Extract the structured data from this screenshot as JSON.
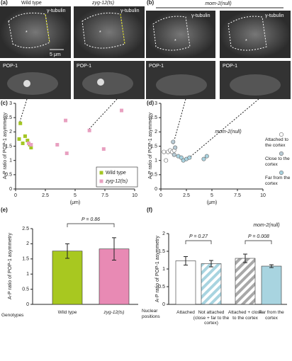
{
  "micrographs": {
    "a": {
      "label": "(a)",
      "columns": [
        "Wild type",
        "zyg-12(ts)"
      ],
      "stain_top": "γ-tubulin",
      "stain_bottom": "POP-1",
      "scale_bar": "5 μm",
      "marker": "*"
    },
    "b": {
      "label": "(b)",
      "title": "mom-2(null)",
      "stain_top": "γ-tubulin",
      "stain_bottom": "POP-1",
      "marker": "*"
    }
  },
  "chart_data": [
    {
      "type": "scatter",
      "label": "(c)",
      "y_label": "A-P ratio of POP-1 asymmetry",
      "x_label": "(μm)",
      "xlim": [
        0,
        10
      ],
      "xticks": [
        0,
        2.5,
        5,
        7.5,
        10
      ],
      "ylim": [
        0,
        3
      ],
      "yticks": [
        0,
        0.5,
        1,
        1.5,
        2,
        2.5,
        3
      ],
      "marker": "square",
      "legend": "lower right",
      "series": [
        {
          "name": "Wild type",
          "color": "#a4c623",
          "x": [
            0.4,
            0.3,
            0.8,
            1.0,
            1.2,
            1.3,
            0.6
          ],
          "values": [
            2.3,
            1.75,
            1.85,
            1.7,
            1.55,
            1.45,
            1.6
          ]
        },
        {
          "name": "zyg-12(ts)",
          "color": "#e8a0c0",
          "x": [
            1.1,
            4.2,
            6.2,
            8.9,
            3.5,
            7.4,
            4.3,
            1.3
          ],
          "values": [
            1.6,
            2.4,
            2.05,
            2.75,
            1.55,
            1.4,
            1.25,
            1.55
          ]
        }
      ]
    },
    {
      "type": "scatter",
      "label": "(d)",
      "y_label": "A-P ratio of POP-1 asymmetry",
      "x_label": "(μm)",
      "xlim": [
        0,
        10
      ],
      "xticks": [
        0,
        2.5,
        5,
        7.5,
        10
      ],
      "ylim": [
        0,
        3
      ],
      "yticks": [
        0,
        0.5,
        1,
        1.5,
        2,
        2.5,
        3
      ],
      "marker": "circle",
      "legend": "right",
      "annotations": [
        "mom-2(null)"
      ],
      "series": [
        {
          "name": "Attached to the cortex",
          "color": "#ffffff",
          "x": [
            0.3,
            0.5,
            0.7,
            0.9,
            1.1,
            1.3
          ],
          "values": [
            1.3,
            1.0,
            1.3,
            1.35,
            1.3,
            1.35
          ]
        },
        {
          "name": "Close to the cortex",
          "color": "#b9ccd6",
          "x": [
            1.2,
            1.4,
            1.3
          ],
          "values": [
            1.65,
            1.45,
            1.2
          ]
        },
        {
          "name": "Far from the cortex",
          "color": "#a9d3e0",
          "x": [
            1.7,
            2.0,
            2.2,
            2.5,
            2.8,
            4.2,
            4.5
          ],
          "values": [
            1.15,
            1.1,
            1.0,
            1.05,
            1.1,
            1.05,
            1.15
          ]
        }
      ]
    },
    {
      "type": "bar",
      "label": "(e)",
      "y_label": "A-P ratio of POP-1 asymmetry",
      "x_label": "Genotypes",
      "ylim": [
        0,
        2.5
      ],
      "yticks": [
        0,
        0.5,
        1,
        1.5,
        2,
        2.5
      ],
      "categories": [
        "Wild type",
        "zyg-12(ts)"
      ],
      "values": [
        1.76,
        1.83
      ],
      "errors": [
        0.24,
        0.37
      ],
      "colors": [
        "#a8c820",
        "#e88ab4"
      ],
      "hatch": [
        false,
        false
      ],
      "annotations": [
        "P = 0.86"
      ]
    },
    {
      "type": "bar",
      "label": "(f)",
      "y_label": "A-P ratio of POP-1 asymmetry",
      "x_label": "Nuclear positions",
      "ylim": [
        0,
        2
      ],
      "yticks": [
        0,
        0.5,
        1,
        1.5,
        2
      ],
      "categories": [
        "Attached",
        "Not attached (close + far to the cortex)",
        "Attached + close to the cortex",
        "Far from the cortex"
      ],
      "values": [
        1.23,
        1.15,
        1.3,
        1.08
      ],
      "errors": [
        0.12,
        0.09,
        0.12,
        0.04
      ],
      "colors": [
        "#ffffff",
        "#a8d4e0",
        "#a8a8a8",
        "#a8d4e0"
      ],
      "hatch": [
        false,
        true,
        true,
        false
      ],
      "annotations": [
        "P = 0.27",
        "P = 0.008",
        "mom-2(null)"
      ]
    }
  ]
}
